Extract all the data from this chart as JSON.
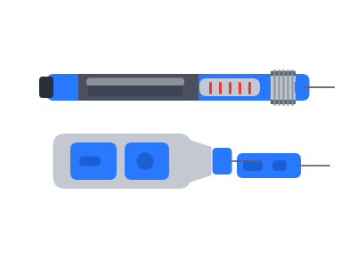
{
  "bg": "#ffffff",
  "blue": "#2979ff",
  "blue_dark": "#1a5fd4",
  "gray_body": "#c4c8d0",
  "gray_dark": "#5a6270",
  "gray_mid": "#8c9198",
  "gray_ridge": "#9da3ab",
  "dark_panel": "#3d4554",
  "dark_panel2": "#4a5060",
  "black_cap": "#2a2e38",
  "red": "#e53935"
}
